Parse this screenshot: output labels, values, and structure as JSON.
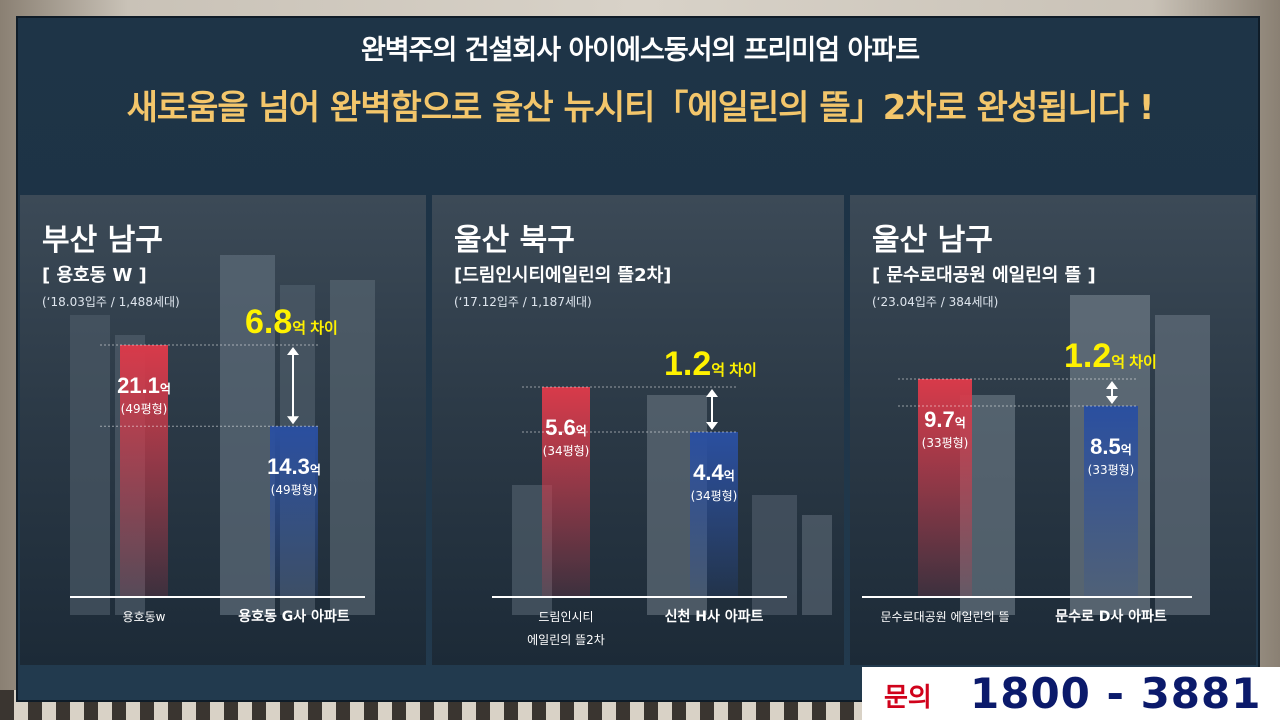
{
  "header": {
    "title": "완벽주의 건설회사 아이에스동서의 프리미엄 아파트",
    "subtitle": "새로움을 넘어 완벽함으로 울산 뉴시티「에일린의 뜰」2차로 완성됩니다 !"
  },
  "colors": {
    "panel": "#1e3447",
    "subtitle": "#f3c66b",
    "diff_text": "#fff200",
    "bar_red": "#d83a4a",
    "bar_blue": "#2a4fa0",
    "contact_label": "#d0021b",
    "contact_number": "#0b1a6b"
  },
  "contact": {
    "label": "문의",
    "number": "1800 - 3881"
  },
  "chart_data": [
    {
      "type": "bar",
      "region": "부산 남구",
      "complex": "[ 용호동 W ]",
      "meta": "(‘18.03입주 / 1,488세대)",
      "categories": [
        "용호동w",
        "용호동 G사 아파트"
      ],
      "values": [
        21.1,
        14.3
      ],
      "value_labels": [
        "21.1",
        "14.3"
      ],
      "unit": "억",
      "sizes": [
        "(49평형)",
        "(49평형)"
      ],
      "difference": {
        "value": "6.8",
        "unit": "억",
        "text": "차이"
      }
    },
    {
      "type": "bar",
      "region": "울산 북구",
      "complex": "[드림인시티에일린의 뜰2차]",
      "meta": "(‘17.12입주 / 1,187세대)",
      "categories": [
        "드림인시티 에일린의 뜰2차",
        "신천 H사 아파트"
      ],
      "categories_line1": [
        "드림인시티",
        "신천 H사 아파트"
      ],
      "categories_line2": [
        "에일린의 뜰2차",
        ""
      ],
      "values": [
        5.6,
        4.4
      ],
      "value_labels": [
        "5.6",
        "4.4"
      ],
      "unit": "억",
      "sizes": [
        "(34평형)",
        "(34평형)"
      ],
      "difference": {
        "value": "1.2",
        "unit": "억",
        "text": "차이"
      }
    },
    {
      "type": "bar",
      "region": "울산 남구",
      "complex": "[ 문수로대공원 에일린의 뜰 ]",
      "meta": "(‘23.04입주 / 384세대)",
      "categories": [
        "문수로대공원 에일린의 뜰",
        "문수로 D사 아파트"
      ],
      "values": [
        9.7,
        8.5
      ],
      "value_labels": [
        "9.7",
        "8.5"
      ],
      "unit": "억",
      "sizes": [
        "(33평형)",
        "(33평형)"
      ],
      "difference": {
        "value": "1.2",
        "unit": "억",
        "text": "차이"
      }
    }
  ]
}
